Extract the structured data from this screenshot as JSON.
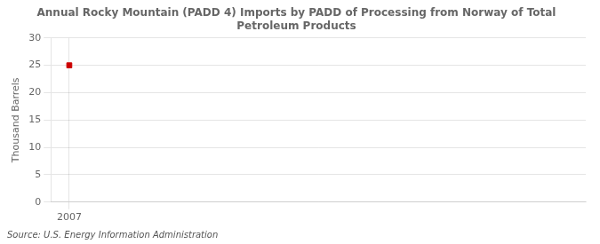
{
  "chart_data": {
    "type": "scatter",
    "title": "Annual Rocky Mountain (PADD 4) Imports by PADD of Processing from Norway of Total\nPetroleum Products",
    "ylabel": "Thousand Barrels",
    "source": "Source: U.S. Energy Information Administration",
    "x": [
      2007
    ],
    "values": [
      25
    ],
    "color": "#cc0000",
    "marker": "square",
    "xlim": [
      2006.5,
      2021
    ],
    "xticks": [
      2007
    ],
    "ylim": [
      0,
      30
    ],
    "yticks": [
      0,
      5,
      10,
      15,
      20,
      25,
      30
    ],
    "grid": true
  }
}
